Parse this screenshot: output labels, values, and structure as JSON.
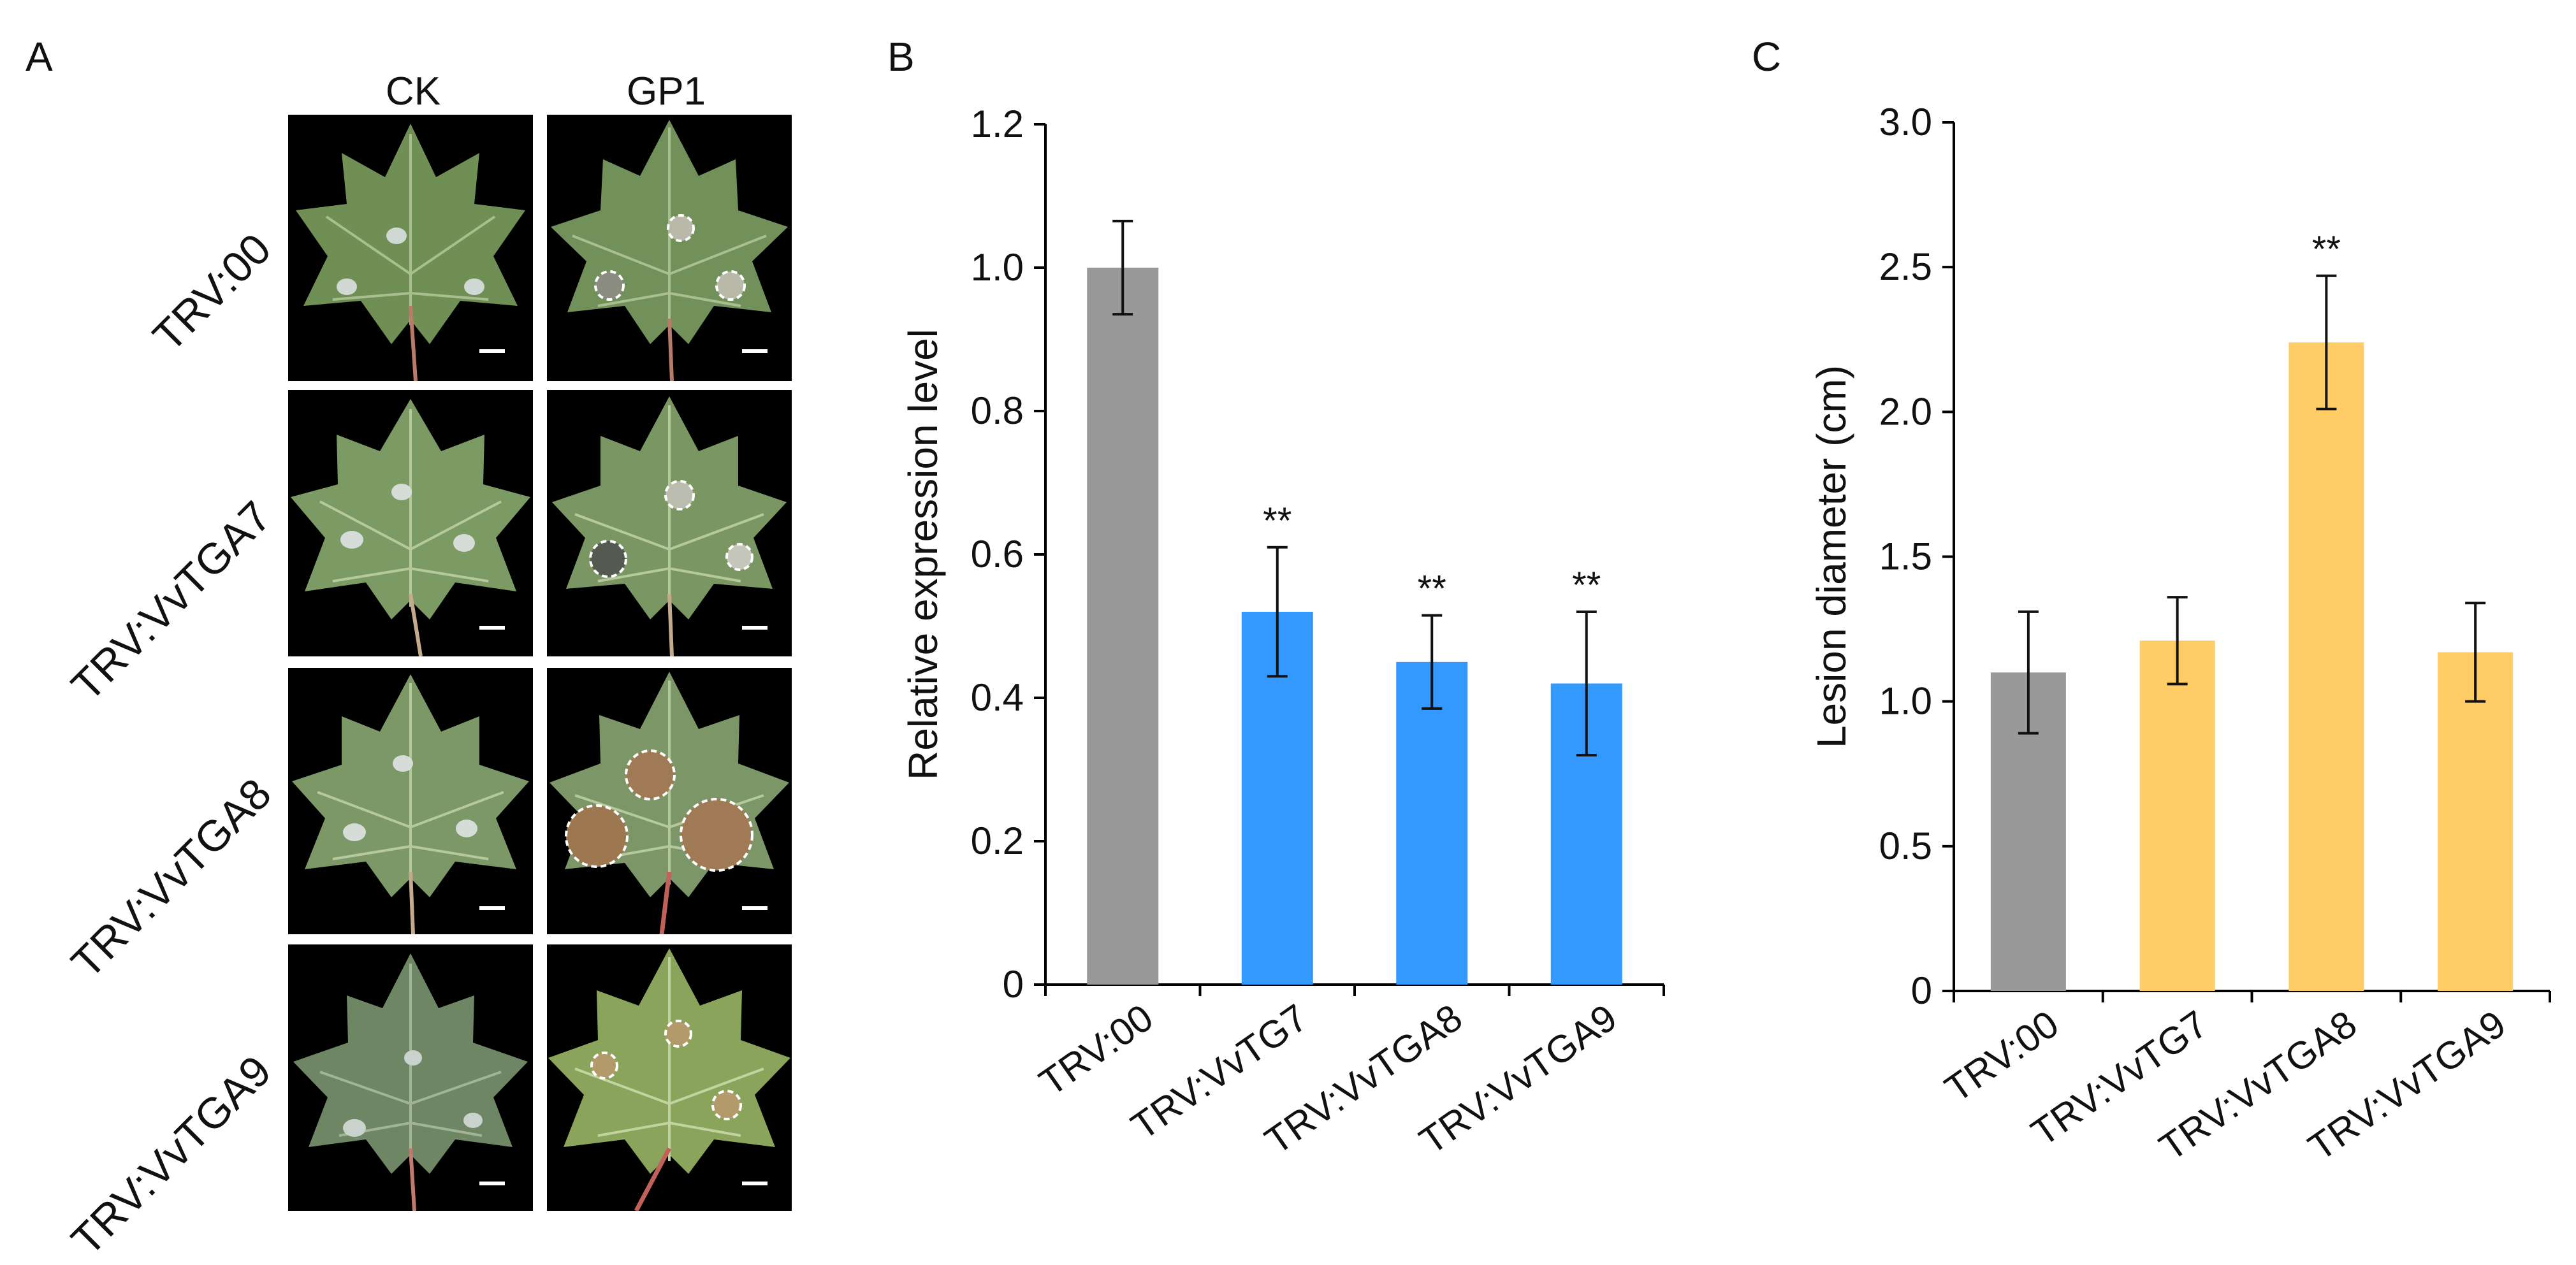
{
  "panels": {
    "a": {
      "letter": "A",
      "columns": [
        "CK",
        "GP1"
      ],
      "rows": [
        "TRV:00",
        "TRV:VvTGA7",
        "TRV:VvTGA8",
        "TRV:VvTGA9"
      ]
    },
    "b": {
      "letter": "B"
    },
    "c": {
      "letter": "C"
    }
  },
  "colors": {
    "control_bar": "#999999",
    "expression_bar": "#3399FF",
    "lesion_bar": "#FFCC66",
    "leaf_green": "#6f8f55",
    "photo_background": "#000000"
  },
  "chart_data": [
    {
      "type": "bar",
      "panel": "B",
      "categories": [
        "TRV:00",
        "TRV:VvTG7",
        "TRV:VvTGA8",
        "TRV:VvTGA9"
      ],
      "values": [
        1.0,
        0.52,
        0.45,
        0.42
      ],
      "errors": [
        0.065,
        0.09,
        0.065,
        0.1
      ],
      "significance": [
        "",
        "**",
        "**",
        "**"
      ],
      "bar_colors": [
        "#999999",
        "#3399FF",
        "#3399FF",
        "#3399FF"
      ],
      "ylabel": "Relative expression level",
      "xlabel": "",
      "ylim": [
        0,
        1.2
      ],
      "yticks": [
        0,
        0.2,
        0.4,
        0.6,
        0.8,
        1.0,
        1.2
      ],
      "ytick_labels": [
        "0",
        "0.2",
        "0.4",
        "0.6",
        "0.8",
        "1.0",
        "1.2"
      ],
      "grid": false
    },
    {
      "type": "bar",
      "panel": "C",
      "categories": [
        "TRV:00",
        "TRV:VvTG7",
        "TRV:VvTGA8",
        "TRV:VvTGA9"
      ],
      "values": [
        1.1,
        1.21,
        2.24,
        1.17
      ],
      "errors": [
        0.21,
        0.15,
        0.23,
        0.17
      ],
      "significance": [
        "",
        "",
        "**",
        ""
      ],
      "bar_colors": [
        "#999999",
        "#FFCC66",
        "#FFCC66",
        "#FFCC66"
      ],
      "ylabel": "Lesion diameter (cm)",
      "xlabel": "",
      "ylim": [
        0,
        3.0
      ],
      "yticks": [
        0,
        0.5,
        1.0,
        1.5,
        2.0,
        2.5,
        3.0
      ],
      "ytick_labels": [
        "0",
        "0.5",
        "1.0",
        "1.5",
        "2.0",
        "2.5",
        "3.0"
      ],
      "grid": false
    }
  ]
}
